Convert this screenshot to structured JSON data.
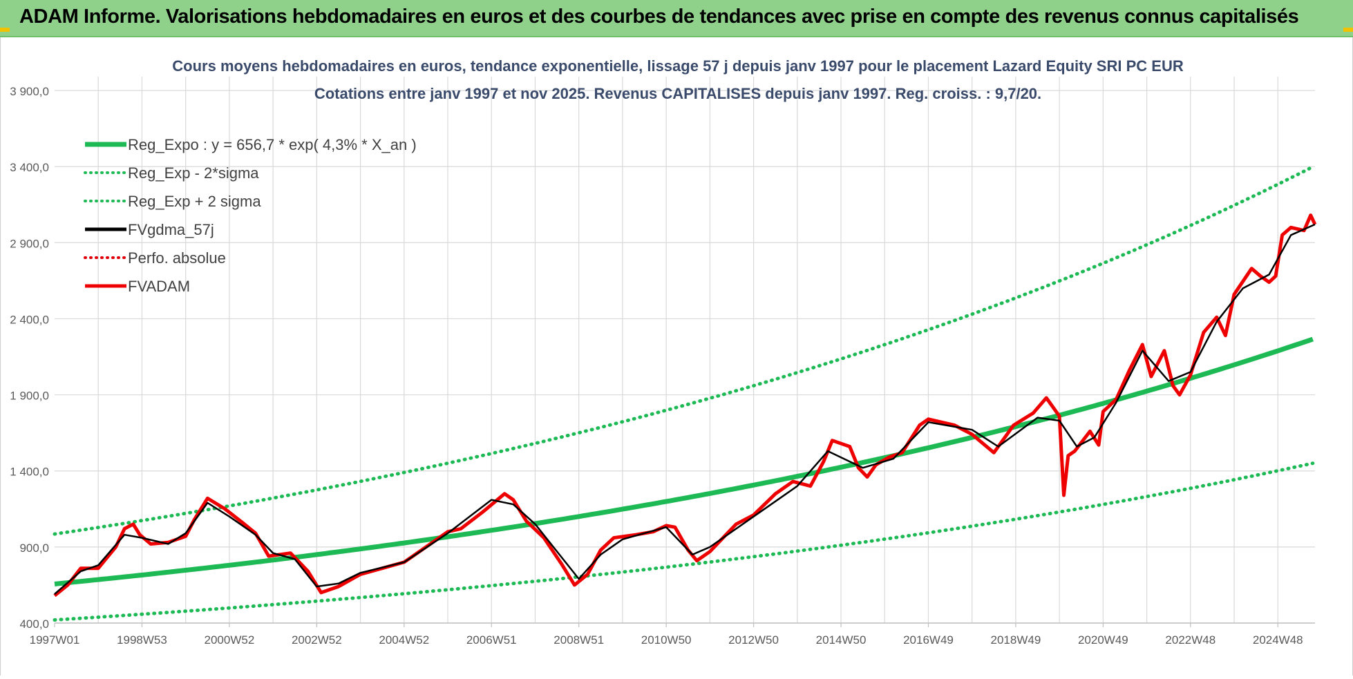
{
  "banner": {
    "title": "ADAM Informe. Valorisations hebdomadaires en euros et des courbes de tendances avec prise en compte des revenus connus capitalisés",
    "background": "#8fd18a"
  },
  "chart_data": {
    "type": "line",
    "title_line1": "Cours moyens hebdomadaires en euros, tendance exponentielle, lissage 57 j depuis janv 1997 pour le placement Lazard Equity SRI  PC EUR",
    "title_line2": "Cotations entre janv 1997 et nov 2025. Revenus CAPITALISES depuis janv 1997. Reg. croiss. : 9,7/20.",
    "ylim": [
      400,
      3900
    ],
    "y_ticks": [
      "400,0",
      "900,0",
      "1 400,0",
      "1 900,0",
      "2 400,0",
      "2 900,0",
      "3 400,0",
      "3 900,0"
    ],
    "y_tick_values": [
      400,
      900,
      1400,
      1900,
      2400,
      2900,
      3400,
      3900
    ],
    "xlim": [
      1997.0,
      2025.85
    ],
    "x_ticks": [
      "1997W01",
      "1998W53",
      "2000W52",
      "2002W52",
      "2004W52",
      "2006W51",
      "2008W51",
      "2010W50",
      "2012W50",
      "2014W50",
      "2016W49",
      "2018W49",
      "2020W49",
      "2022W48",
      "2024W48"
    ],
    "x_tick_values": [
      1997.0,
      1999.0,
      2001.0,
      2003.0,
      2005.0,
      2007.0,
      2009.0,
      2011.0,
      2013.0,
      2015.0,
      2017.0,
      2019.0,
      2021.0,
      2023.0,
      2025.0
    ],
    "grid": true,
    "legend_position": "top-left",
    "legend": [
      {
        "label": "Reg_Expo : y = 656,7 * exp( 4,3% *  X_an )",
        "color": "#1db954",
        "style": "solid"
      },
      {
        "label": "Reg_Exp - 2*sigma",
        "color": "#1db954",
        "style": "dotted"
      },
      {
        "label": "Reg_Exp + 2 sigma",
        "color": "#1db954",
        "style": "dotted"
      },
      {
        "label": "FVgdma_57j",
        "color": "#000000",
        "style": "solid"
      },
      {
        "label": "Perfo. absolue",
        "color": "#e00000",
        "style": "dotted"
      },
      {
        "label": "FVADAM",
        "color": "#ee0000",
        "style": "solid"
      }
    ],
    "regression": {
      "a": 656.7,
      "rate": 0.043,
      "lower_factor": 0.64,
      "upper_factor": 1.5
    },
    "series": [
      {
        "name": "FVADAM",
        "color": "#ee0000",
        "x": [
          1997.0,
          1997.3,
          1997.6,
          1998.0,
          1998.4,
          1998.6,
          1998.8,
          1998.95,
          1999.2,
          1999.6,
          2000.0,
          2000.2,
          2000.5,
          2000.9,
          2001.3,
          2001.6,
          2001.9,
          2002.4,
          2002.6,
          2002.8,
          2003.1,
          2003.5,
          2004.0,
          2004.5,
          2005.0,
          2005.5,
          2006.0,
          2006.3,
          2006.8,
          2007.3,
          2007.5,
          2007.8,
          2008.2,
          2008.6,
          2008.9,
          2009.2,
          2009.5,
          2009.8,
          2010.3,
          2010.7,
          2011.0,
          2011.2,
          2011.5,
          2011.7,
          2012.0,
          2012.3,
          2012.6,
          2013.0,
          2013.5,
          2013.9,
          2014.3,
          2014.6,
          2014.8,
          2015.2,
          2015.4,
          2015.6,
          2015.8,
          2016.1,
          2016.4,
          2016.8,
          2017.0,
          2017.3,
          2017.6,
          2018.0,
          2018.5,
          2018.7,
          2018.95,
          2019.4,
          2019.7,
          2020.0,
          2020.1,
          2020.2,
          2020.35,
          2020.7,
          2020.9,
          2021.0,
          2021.3,
          2021.6,
          2021.9,
          2022.1,
          2022.4,
          2022.6,
          2022.75,
          2023.0,
          2023.3,
          2023.6,
          2023.8,
          2024.0,
          2024.4,
          2024.6,
          2024.8,
          2024.95,
          2025.1,
          2025.3,
          2025.6,
          2025.75,
          2025.85
        ],
        "values": [
          580,
          650,
          760,
          760,
          900,
          1020,
          1050,
          980,
          920,
          930,
          970,
          1080,
          1220,
          1150,
          1060,
          990,
          840,
          860,
          800,
          740,
          600,
          640,
          720,
          760,
          800,
          900,
          1000,
          1020,
          1130,
          1250,
          1210,
          1070,
          960,
          790,
          650,
          720,
          880,
          960,
          980,
          1000,
          1040,
          1030,
          880,
          810,
          870,
          960,
          1050,
          1110,
          1250,
          1330,
          1300,
          1460,
          1600,
          1560,
          1420,
          1360,
          1440,
          1490,
          1520,
          1700,
          1740,
          1720,
          1700,
          1640,
          1520,
          1600,
          1700,
          1780,
          1880,
          1760,
          1240,
          1500,
          1530,
          1660,
          1570,
          1790,
          1870,
          2060,
          2230,
          2020,
          2190,
          1960,
          1900,
          2030,
          2310,
          2410,
          2290,
          2560,
          2730,
          2680,
          2640,
          2680,
          2950,
          3000,
          2980,
          3080,
          3020
        ]
      },
      {
        "name": "FVgdma_57j",
        "color": "#000000",
        "x": [
          1997.0,
          1997.6,
          1998.0,
          1998.6,
          1999.0,
          1999.6,
          2000.0,
          2000.5,
          2001.0,
          2001.6,
          2002.0,
          2002.5,
          2003.0,
          2003.5,
          2004.0,
          2005.0,
          2006.0,
          2007.0,
          2007.5,
          2008.0,
          2008.5,
          2009.0,
          2009.5,
          2010.0,
          2011.0,
          2011.6,
          2012.0,
          2013.0,
          2014.0,
          2014.7,
          2015.5,
          2016.2,
          2017.0,
          2018.0,
          2018.6,
          2019.5,
          2020.0,
          2020.4,
          2020.8,
          2021.3,
          2021.9,
          2022.5,
          2023.0,
          2023.6,
          2024.2,
          2024.8,
          2025.3,
          2025.85
        ],
        "values": [
          590,
          740,
          780,
          980,
          960,
          920,
          990,
          1190,
          1100,
          980,
          860,
          820,
          640,
          660,
          730,
          800,
          990,
          1210,
          1180,
          1050,
          870,
          690,
          850,
          950,
          1030,
          850,
          900,
          1100,
          1300,
          1530,
          1420,
          1480,
          1720,
          1670,
          1560,
          1750,
          1730,
          1560,
          1620,
          1850,
          2190,
          1990,
          2050,
          2380,
          2600,
          2690,
          2950,
          3020
        ]
      }
    ]
  }
}
